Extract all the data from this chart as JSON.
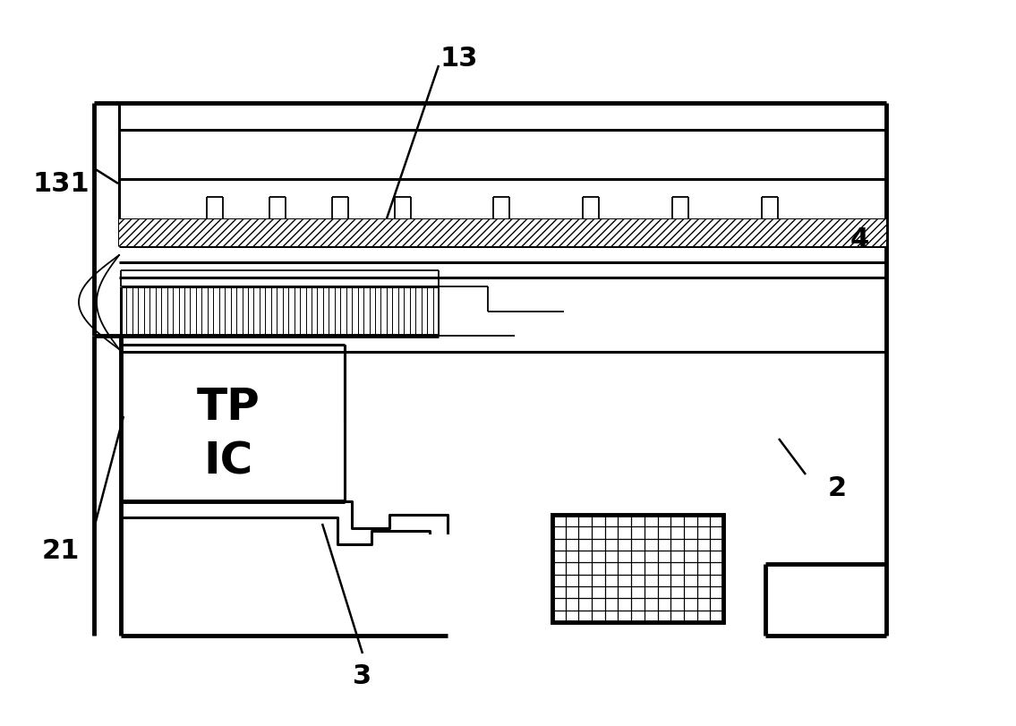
{
  "bg_color": "#ffffff",
  "line_color": "#000000",
  "fig_width": 11.35,
  "fig_height": 8.11,
  "dpi": 100,
  "lw": 2.2,
  "lw_thin": 1.3,
  "lw_thick": 3.5
}
